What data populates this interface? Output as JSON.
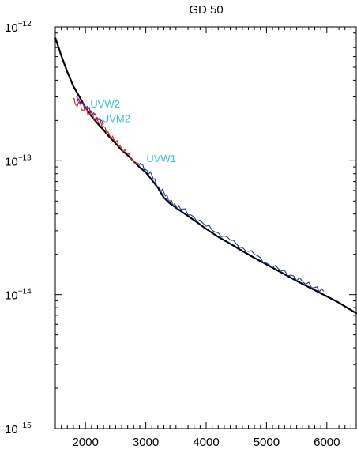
{
  "chart_data": {
    "type": "line",
    "title": "GD 50",
    "xlabel": "",
    "ylabel": "",
    "xlim": [
      1500,
      6500
    ],
    "ylim": [
      1e-15,
      1e-12
    ],
    "y_scale": "log",
    "grid": false,
    "x_ticks": [
      {
        "value": 2000,
        "label": "2000"
      },
      {
        "value": 3000,
        "label": "3000"
      },
      {
        "value": 4000,
        "label": "4000"
      },
      {
        "value": 5000,
        "label": "5000"
      },
      {
        "value": 6000,
        "label": "6000"
      }
    ],
    "y_ticks": [
      {
        "value": 1e-12,
        "base": "10",
        "exp": "−12"
      },
      {
        "value": 1e-13,
        "base": "10",
        "exp": "−13"
      },
      {
        "value": 1e-14,
        "base": "10",
        "exp": "−14"
      },
      {
        "value": 1e-15,
        "base": "10",
        "exp": "−15"
      }
    ],
    "series": [
      {
        "color": "#000000",
        "x": [
          1500,
          1600,
          1700,
          1800,
          1900,
          2000,
          2100,
          2200,
          2300,
          2400,
          2500,
          2600,
          2700,
          2800,
          2900,
          3000,
          3100,
          3200,
          3300,
          3400,
          3600,
          3800,
          4000,
          4200,
          4400,
          4600,
          4800,
          5000,
          5200,
          5400,
          5600,
          5800,
          6000,
          6200,
          6500
        ],
        "y": [
          8.3e-13,
          6.1e-13,
          4.6e-13,
          3.6e-13,
          3e-13,
          2.5e-13,
          2.15e-13,
          1.9e-13,
          1.7e-13,
          1.5e-13,
          1.35e-13,
          1.2e-13,
          1.1e-13,
          9.9e-14,
          8.9e-14,
          8.2e-14,
          7.2e-14,
          6.3e-14,
          5.3e-14,
          4.8e-14,
          4.15e-14,
          3.6e-14,
          3.1e-14,
          2.7e-14,
          2.4e-14,
          2.12e-14,
          1.88e-14,
          1.68e-14,
          1.5e-14,
          1.34e-14,
          1.2e-14,
          1.08e-14,
          9.7e-15,
          8.7e-15,
          7.2e-15
        ]
      },
      {
        "name": "UVW1",
        "color": "#1c3c9c",
        "label_color": "#35c4d8",
        "label_x": 3010,
        "label_y": 9.8e-14,
        "x": [
          2900,
          3000,
          3100,
          3200,
          3300,
          3400,
          3500,
          3600,
          3800,
          4000,
          4200,
          4400,
          4600,
          4800,
          5000,
          5200,
          5400,
          5600,
          5800,
          5950
        ],
        "y": [
          9.6e-14,
          8.6e-14,
          7.8e-14,
          6.4e-14,
          5.8e-14,
          5e-14,
          4.6e-14,
          4.35e-14,
          3.8e-14,
          3.25e-14,
          2.9e-14,
          2.55e-14,
          2.25e-14,
          2e-14,
          1.72e-14,
          1.55e-14,
          1.4e-14,
          1.25e-14,
          1.13e-14,
          1.06e-14
        ]
      },
      {
        "name": "UVM2",
        "color": "#e0202c",
        "label_color": "#35c4d8",
        "label_x": 2270,
        "label_y": 1.94e-13,
        "x": [
          1800,
          1850,
          1900,
          1950,
          2000,
          2050,
          2100,
          2150,
          2200,
          2300,
          2400,
          2500,
          2600,
          2700,
          2800,
          2900
        ],
        "y": [
          2.9e-13,
          2.6e-13,
          2.7e-13,
          2.4e-13,
          2.45e-13,
          2.25e-13,
          2.3e-13,
          2.05e-13,
          2e-13,
          1.8e-13,
          1.55e-13,
          1.4e-13,
          1.25e-13,
          1.12e-13,
          1e-13,
          9.2e-14
        ]
      },
      {
        "name": "UVW2",
        "color": "#7a1f8a",
        "label_color": "#35c4d8",
        "label_x": 2080,
        "label_y": 2.5e-13,
        "x": [
          1850,
          1900,
          1950,
          2000,
          2050,
          2100,
          2150,
          2200,
          2250,
          2300
        ],
        "y": [
          3e-13,
          2.8e-13,
          2.65e-13,
          2.55e-13,
          2.45e-13,
          2.3e-13,
          2.2e-13,
          2.1e-13,
          2e-13,
          1.9e-13
        ]
      }
    ]
  }
}
